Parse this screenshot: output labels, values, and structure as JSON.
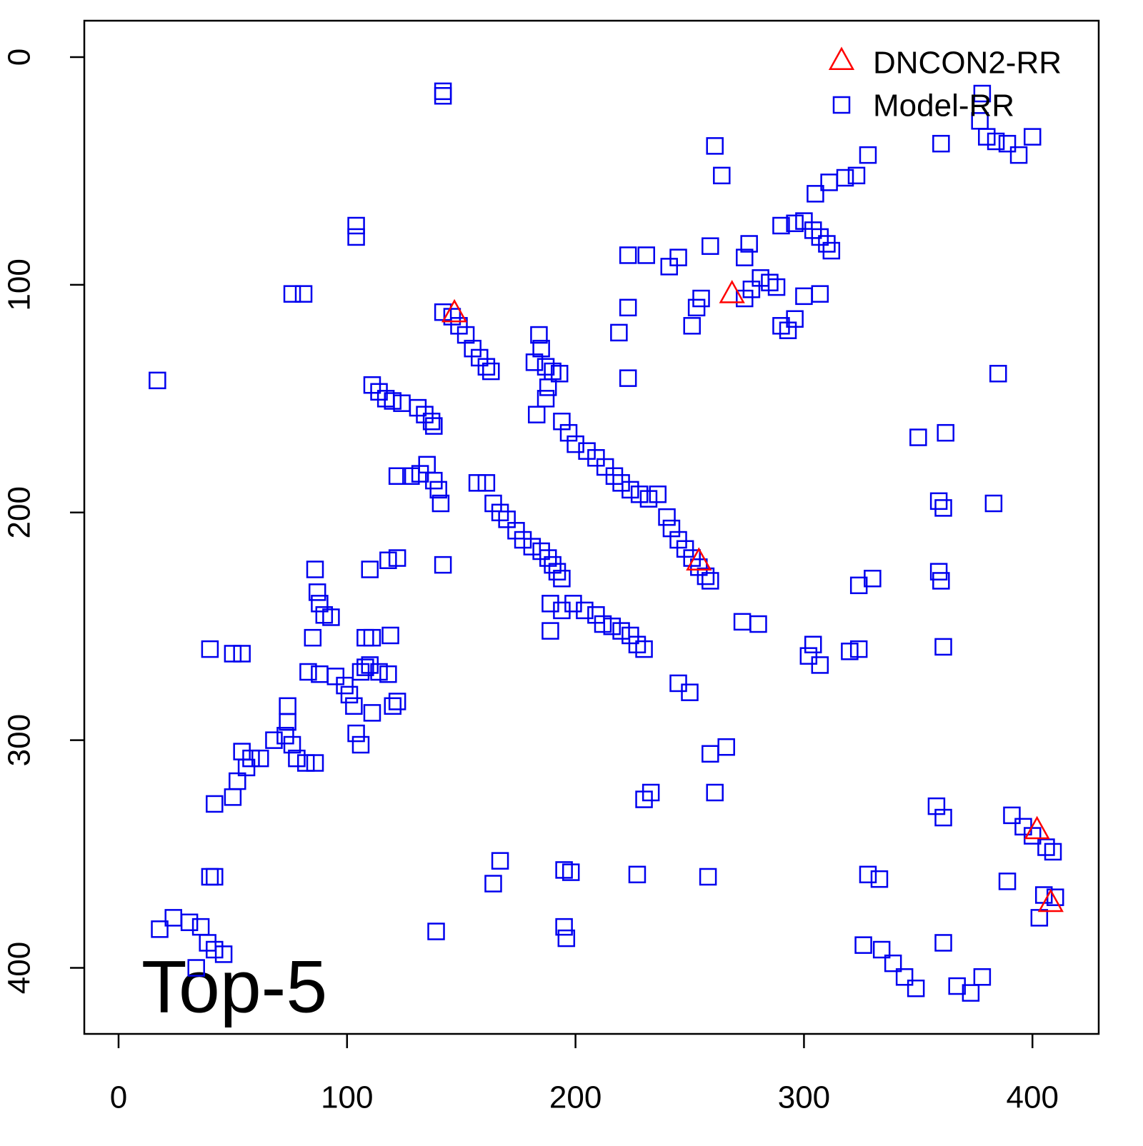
{
  "chart_data": {
    "type": "scatter",
    "annotation": "Top-5",
    "xlim": [
      -15,
      429
    ],
    "ylim": [
      429,
      -16
    ],
    "xticks": [
      0,
      100,
      200,
      300,
      400
    ],
    "yticks": [
      0,
      100,
      200,
      300,
      400
    ],
    "legend": "topright",
    "series": [
      {
        "name": "DNCON2-RR",
        "color": "#ff0000",
        "marker": "triangle",
        "x": [
          147,
          268.5,
          254,
          402,
          408
        ],
        "values": [
          113,
          104.6,
          222,
          340,
          372
        ]
      },
      {
        "name": "Model-RR",
        "color": "#0000ee",
        "marker": "square",
        "x": [
          142,
          142,
          104,
          104,
          76,
          81,
          17,
          142,
          146,
          149,
          152,
          155,
          158,
          161,
          163,
          111,
          114,
          117,
          120,
          124,
          131,
          134,
          137,
          138,
          182,
          185,
          184,
          187,
          190,
          193,
          188,
          187,
          183,
          194,
          197,
          200,
          205,
          209,
          213,
          217,
          220,
          224,
          228,
          232,
          236,
          240,
          242,
          245,
          248,
          251,
          254,
          257,
          259,
          122,
          128,
          132,
          135,
          138,
          140,
          141,
          157,
          161,
          164,
          167,
          170,
          174,
          177,
          181,
          185,
          188,
          190,
          192,
          194,
          189,
          194,
          199,
          204,
          209,
          212,
          216,
          220,
          224,
          227,
          230,
          110,
          118,
          122,
          142,
          189,
          86,
          87,
          88,
          90,
          93,
          85,
          83,
          88,
          95,
          99,
          101,
          103,
          106,
          108,
          110,
          114,
          118,
          104,
          106,
          108,
          111,
          119,
          111,
          120,
          122,
          40,
          50,
          54,
          54,
          56,
          52,
          50,
          58,
          62,
          68,
          73,
          76,
          78,
          82,
          86,
          74,
          74,
          42,
          40,
          42,
          18,
          24,
          31,
          36,
          39,
          42,
          46,
          34,
          261,
          264,
          259,
          245,
          231,
          223,
          241,
          276,
          274,
          253,
          251,
          255,
          274,
          277,
          281,
          285,
          288,
          290,
          293,
          296,
          300,
          307,
          219,
          223,
          223,
          290,
          296,
          300,
          304,
          307,
          310,
          312,
          305,
          311,
          318,
          323,
          328,
          360,
          377,
          380,
          384,
          389,
          394,
          400,
          378,
          385,
          350,
          362,
          359,
          361,
          383,
          359,
          360,
          361,
          324,
          330,
          320,
          324,
          302,
          304,
          307,
          273,
          280,
          245,
          250,
          259,
          266,
          261,
          230,
          233,
          358,
          361,
          391,
          396,
          400,
          406,
          409,
          195,
          198,
          164,
          167,
          227,
          258,
          139,
          195,
          196,
          328,
          333,
          389,
          405,
          410,
          403,
          326,
          334,
          339,
          344,
          349,
          361,
          367,
          373,
          378
        ],
        "values": [
          17,
          15,
          74,
          79,
          104,
          104,
          142,
          112,
          114,
          118,
          122,
          128,
          132,
          136,
          138,
          144,
          147,
          150,
          151,
          152,
          154,
          157,
          160,
          162,
          134,
          128,
          122,
          136,
          138,
          139,
          145,
          150,
          157,
          160,
          165,
          170,
          173,
          176,
          180,
          184,
          187,
          190,
          192,
          194,
          192,
          202,
          207,
          212,
          216,
          220,
          224,
          228,
          230,
          184,
          184,
          183,
          179,
          186,
          190,
          196,
          187,
          187,
          196,
          200,
          203,
          208,
          212,
          215,
          217,
          220,
          223,
          226,
          229,
          240,
          243,
          240,
          243,
          245,
          249,
          250,
          252,
          254,
          258,
          260,
          225,
          221,
          220,
          223,
          252,
          225,
          235,
          240,
          245,
          246,
          255,
          270,
          271,
          272,
          276,
          280,
          285,
          270,
          268,
          267,
          270,
          271,
          297,
          302,
          255,
          255,
          254,
          288,
          285,
          283,
          260,
          262,
          262,
          305,
          312,
          318,
          325,
          308,
          308,
          300,
          298,
          302,
          308,
          310,
          310,
          285,
          292,
          328,
          360,
          360,
          383,
          378,
          380,
          382,
          389,
          392,
          394,
          400,
          39,
          52,
          83,
          88,
          87,
          87,
          92,
          82,
          88,
          110,
          118,
          106,
          106,
          102,
          97,
          99,
          101,
          118,
          120,
          115,
          105,
          104,
          121,
          110,
          141,
          74,
          73,
          72,
          76,
          79,
          82,
          85,
          60,
          55,
          53,
          52,
          43,
          38,
          28,
          35,
          37,
          38,
          43,
          35,
          16,
          139,
          167,
          165,
          195,
          198,
          196,
          226,
          230,
          259,
          232,
          229,
          261,
          260,
          263,
          258,
          267,
          248,
          249,
          275,
          279,
          306,
          303,
          323,
          326,
          323,
          329,
          334,
          333,
          338,
          342,
          347,
          349,
          357,
          358,
          363,
          353,
          359,
          360,
          384,
          382,
          387,
          359,
          361,
          362,
          368,
          369,
          378,
          390,
          392,
          398,
          404,
          409,
          389,
          408,
          411,
          404
        ]
      }
    ]
  }
}
